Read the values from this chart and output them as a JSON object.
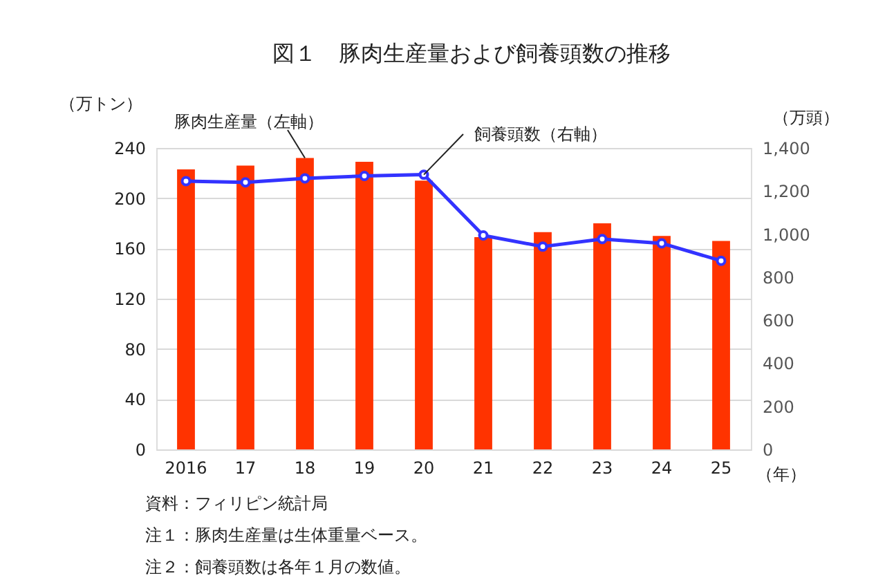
{
  "chart_data": {
    "type": "bar",
    "title": "図１　豚肉生産量および飼養頭数の推移",
    "ylabel": "（万トン）",
    "y2label": "（万頭）",
    "xlabel": "（年）",
    "categories": [
      "2016",
      "17",
      "18",
      "19",
      "20",
      "21",
      "22",
      "23",
      "24",
      "25"
    ],
    "series": [
      {
        "name": "豚肉生産量（左軸）",
        "color": "#ff3300",
        "values": [
          223,
          226,
          232,
          229,
          214,
          169,
          173,
          180,
          170,
          166
        ]
      },
      {
        "name": "飼養頭数（右軸）",
        "type": "line",
        "axis": "y2",
        "color": "#3333ff",
        "marker": "circle",
        "values": [
          1246,
          1240,
          1259,
          1270,
          1276,
          994,
          942,
          977,
          957,
          876
        ]
      }
    ],
    "ylim": [
      0,
      240
    ],
    "yticks": [
      0,
      40,
      80,
      120,
      160,
      200,
      240
    ],
    "y2lim": [
      0,
      1400
    ],
    "y2ticks": [
      0,
      {
        "value": 200,
        "label": "200"
      },
      {
        "value": 400,
        "label": "400"
      },
      {
        "value": 600,
        "label": "600"
      },
      {
        "value": 800,
        "label": "800"
      },
      {
        "value": 1000,
        "label": "1,000"
      },
      {
        "value": 1200,
        "label": "1,200"
      },
      {
        "value": 1400,
        "label": "1,400"
      }
    ],
    "grid": "y",
    "annotations": [
      "資料：フィリピン統計局",
      "注１：豚肉生産量は生体重量ベース。",
      "注２：飼養頭数は各年１月の数値。"
    ]
  }
}
